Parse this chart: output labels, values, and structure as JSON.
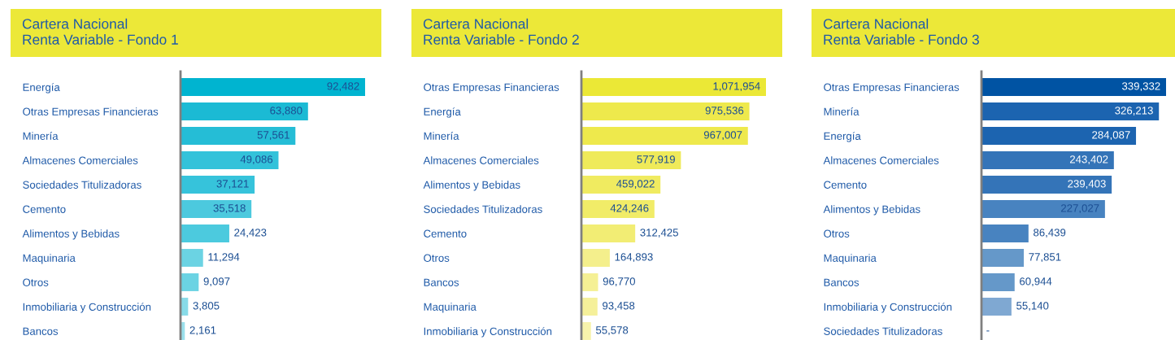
{
  "chart_data": [
    {
      "type": "bar",
      "orientation": "horizontal",
      "title": "Cartera Nacional\nRenta Variable - Fondo 1",
      "data_labels": true,
      "categories": [
        "Energía",
        "Otras Empresas Financieras",
        "Minería",
        "Almacenes Comerciales",
        "Sociedades Titulizadoras",
        "Cemento",
        "Alimentos y Bebidas",
        "Maquinaria",
        "Otros",
        "Inmobiliaria y Construcción",
        "Bancos"
      ],
      "values": [
        92482,
        63880,
        57561,
        49086,
        37121,
        35518,
        24423,
        11294,
        9097,
        3805,
        2161
      ],
      "value_labels": [
        "92,482",
        "63,880",
        "57,561",
        "49,086",
        "37,121",
        "35,518",
        "24,423",
        "11,294",
        "9,097",
        "3,805",
        "2,161"
      ],
      "colors": [
        "#00b4d0",
        "#1bbad4",
        "#25bdd6",
        "#33c2da",
        "#36c3db",
        "#4cc9de",
        "#4ccade",
        "#6bd3e3",
        "#6bd3e3",
        "#88dbe8",
        "#9be0ec"
      ]
    },
    {
      "type": "bar",
      "orientation": "horizontal",
      "title": "Cartera Nacional\nRenta Variable - Fondo 2",
      "data_labels": true,
      "categories": [
        "Otras Empresas Financieras",
        "Energía",
        "Minería",
        "Almacenes Comerciales",
        "Alimentos y Bebidas",
        "Sociedades Titulizadoras",
        "Cemento",
        "Otros",
        "Bancos",
        "Maquinaria",
        "Inmobiliaria y Construcción"
      ],
      "values": [
        1071954,
        975536,
        967007,
        577919,
        459022,
        424246,
        312425,
        164893,
        96770,
        93458,
        55578
      ],
      "value_labels": [
        "1,071,954",
        "975,536",
        "967,007",
        "577,919",
        "459,022",
        "424,246",
        "312,425",
        "164,893",
        "96,770",
        "93,458",
        "55,578"
      ],
      "colors": [
        "#ebe836",
        "#eee94c",
        "#eee94c",
        "#efea5a",
        "#f0eb60",
        "#f1ec68",
        "#f2ed74",
        "#f4ef8c",
        "#f5f094",
        "#f5f09a",
        "#f7f3ac"
      ]
    },
    {
      "type": "bar",
      "orientation": "horizontal",
      "title": "Cartera Nacional\nRenta Variable - Fondo 3",
      "data_labels": true,
      "categories": [
        "Otras Empresas Financieras",
        "Minería",
        "Energía",
        "Almacenes Comerciales",
        "Cemento",
        "Alimentos y Bebidas",
        "Otros",
        "Maquinaria",
        "Bancos",
        "Inmobiliaria y Construcción",
        "Sociedades Titulizadoras"
      ],
      "values": [
        339332,
        326213,
        284087,
        243402,
        239403,
        227027,
        86439,
        77851,
        60944,
        55140,
        0
      ],
      "value_labels": [
        "339,332",
        "326,213",
        "284,087",
        "243,402",
        "239,403",
        "227,027",
        "86,439",
        "77,851",
        "60,944",
        "55,140",
        "-"
      ],
      "colors": [
        "#0053a3",
        "#1c64b0",
        "#1c64b0",
        "#3474b8",
        "#3474b8",
        "#4883c0",
        "#4883c0",
        "#6598c9",
        "#6598c9",
        "#7fa8d2",
        "#8fb3d8"
      ]
    }
  ]
}
